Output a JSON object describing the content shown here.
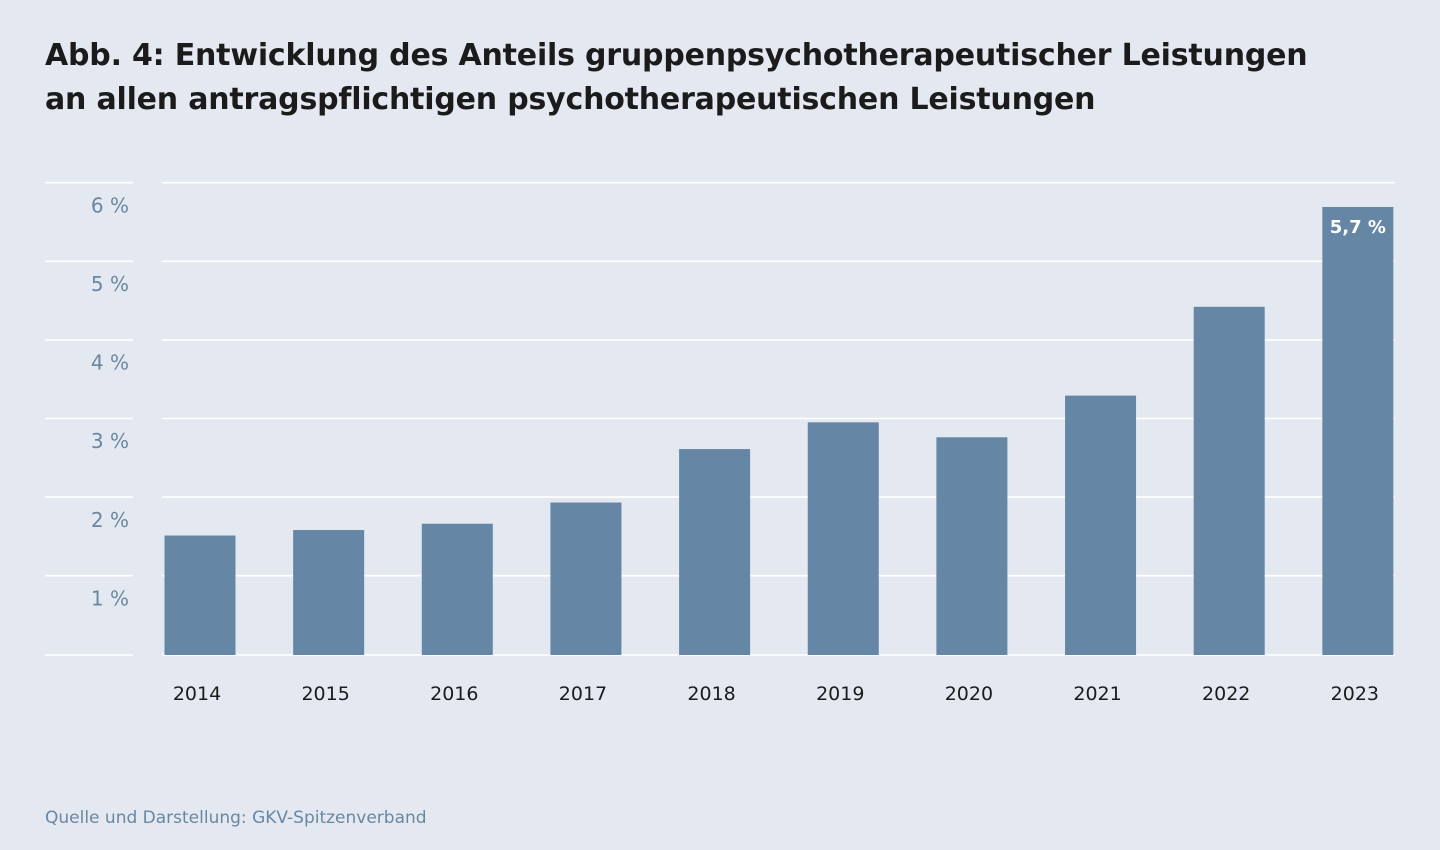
{
  "title": {
    "line1": "Abb. 4: Entwicklung des Anteils gruppenpsychotherapeutischer Leistungen",
    "line2": "an allen antragspflichtigen psychotherapeutischen Leistungen"
  },
  "source": "Quelle und Darstellung: GKV-Spitzenverband",
  "colors": {
    "background": "#e4e8f1",
    "bar": "#6586a5",
    "gridline": "#ffffff",
    "axis_label": "#6a87a2",
    "category_label": "#1b1b1b",
    "data_label": "#ffffff"
  },
  "chart_data": {
    "type": "bar",
    "title": "Abb. 4: Entwicklung des Anteils gruppenpsychotherapeutischer Leistungen an allen antragspflichtigen psychotherapeutischen Leistungen",
    "xlabel": "",
    "ylabel": "",
    "categories": [
      "2014",
      "2015",
      "2016",
      "2017",
      "2018",
      "2019",
      "2020",
      "2021",
      "2022",
      "2023"
    ],
    "values": [
      1.52,
      1.59,
      1.67,
      1.94,
      2.62,
      2.96,
      2.77,
      3.3,
      4.43,
      5.7
    ],
    "ylim": [
      0,
      6
    ],
    "ytick_values": [
      1,
      2,
      3,
      4,
      5,
      6
    ],
    "ytick_labels": [
      "1 %",
      "2 %",
      "3 %",
      "4 %",
      "5 %",
      "6 %"
    ],
    "data_labels": [
      {
        "category": "2023",
        "text": "5,7 %"
      }
    ],
    "grid": true,
    "legend": "none"
  }
}
